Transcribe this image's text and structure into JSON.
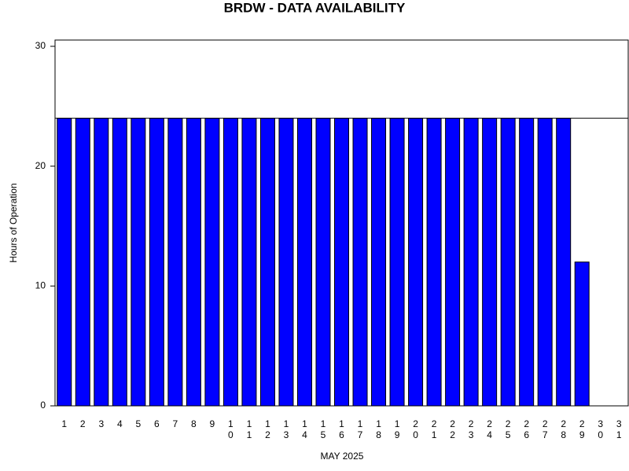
{
  "chart_data": {
    "type": "bar",
    "title": "BRDW - DATA AVAILABILITY",
    "x_label": "MAY 2025",
    "y_label": "Hours of Operation",
    "categories": [
      "1",
      "2",
      "3",
      "4",
      "5",
      "6",
      "7",
      "8",
      "9",
      "10",
      "11",
      "12",
      "13",
      "14",
      "15",
      "16",
      "17",
      "18",
      "19",
      "20",
      "21",
      "22",
      "23",
      "24",
      "25",
      "26",
      "27",
      "28",
      "29",
      "30",
      "31"
    ],
    "values": [
      24,
      24,
      24,
      24,
      24,
      24,
      24,
      24,
      24,
      24,
      24,
      24,
      24,
      24,
      24,
      24,
      24,
      24,
      24,
      24,
      24,
      24,
      24,
      24,
      24,
      24,
      24,
      24,
      12,
      null,
      null
    ],
    "color": "#0000ff",
    "reference_line": 24,
    "ylim": [
      0,
      30
    ],
    "yticks": [
      0,
      10,
      20,
      30
    ]
  }
}
